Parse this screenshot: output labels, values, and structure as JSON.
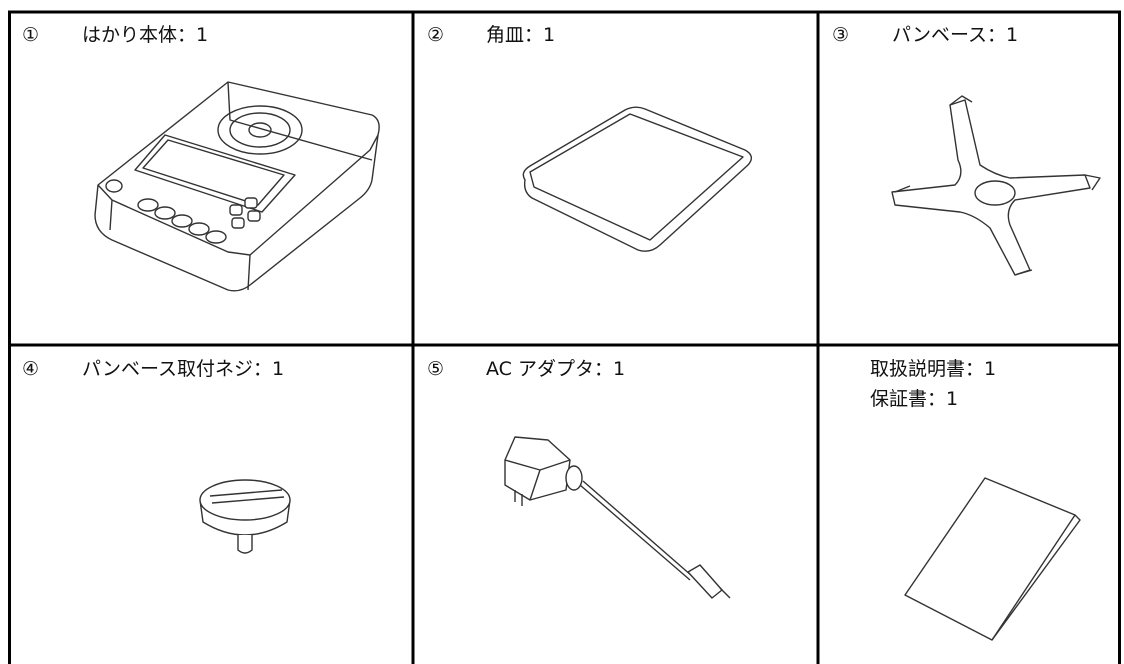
{
  "items": [
    {
      "number": "①",
      "label": "はかり本体：1"
    },
    {
      "number": "②",
      "label": "角皿：1"
    },
    {
      "number": "③",
      "label": "パンベース：1"
    },
    {
      "number": "④",
      "label": "パンベース取付ネジ：1"
    },
    {
      "number": "⑤",
      "label": "AC アダプタ：1"
    },
    {
      "lines": [
        "取扱説明書：1",
        "保証書：1"
      ]
    }
  ]
}
